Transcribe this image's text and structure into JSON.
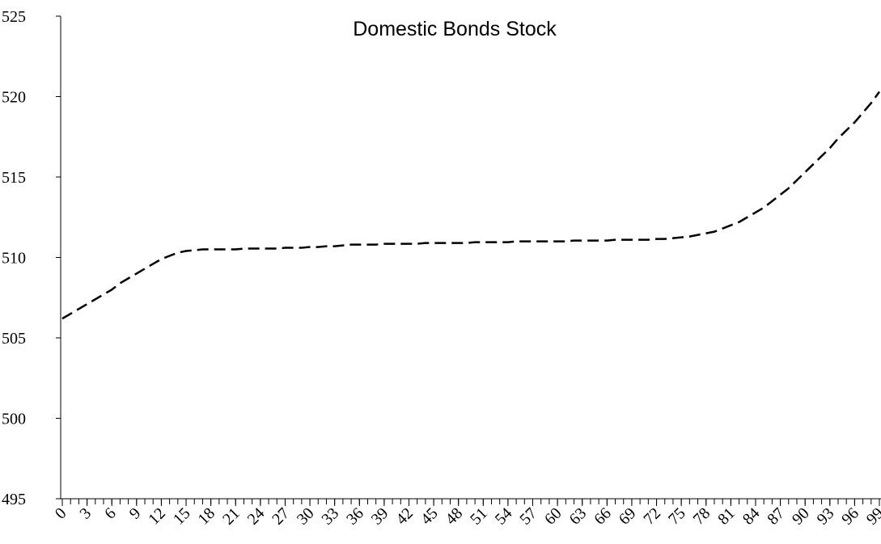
{
  "chart_data": {
    "type": "line",
    "title": "Domestic Bonds Stock",
    "x": [
      0,
      1,
      2,
      3,
      4,
      5,
      6,
      7,
      8,
      9,
      10,
      11,
      12,
      13,
      14,
      15,
      16,
      17,
      18,
      19,
      20,
      21,
      22,
      23,
      24,
      25,
      26,
      27,
      28,
      29,
      30,
      31,
      32,
      33,
      34,
      35,
      36,
      37,
      38,
      39,
      40,
      41,
      42,
      43,
      44,
      45,
      46,
      47,
      48,
      49,
      50,
      51,
      52,
      53,
      54,
      55,
      56,
      57,
      58,
      59,
      60,
      61,
      62,
      63,
      64,
      65,
      66,
      67,
      68,
      69,
      70,
      71,
      72,
      73,
      74,
      75,
      76,
      77,
      78,
      79,
      80,
      81,
      82,
      83,
      84,
      85,
      86,
      87,
      88,
      89,
      90,
      91,
      92,
      93,
      94,
      95,
      96,
      97,
      98,
      99
    ],
    "series": [
      {
        "color": "#000000",
        "values": [
          506.2,
          506.5,
          506.8,
          507.1,
          507.4,
          507.7,
          508.0,
          508.4,
          508.7,
          509.0,
          509.3,
          509.6,
          509.9,
          510.1,
          510.3,
          510.4,
          510.45,
          510.5,
          510.5,
          510.5,
          510.5,
          510.5,
          510.55,
          510.55,
          510.55,
          510.55,
          510.55,
          510.6,
          510.6,
          510.6,
          510.65,
          510.65,
          510.7,
          510.7,
          510.75,
          510.8,
          510.8,
          510.8,
          510.8,
          510.85,
          510.85,
          510.85,
          510.85,
          510.85,
          510.9,
          510.9,
          510.9,
          510.9,
          510.9,
          510.9,
          510.95,
          510.95,
          510.95,
          510.95,
          510.95,
          511.0,
          511.0,
          511.0,
          511.0,
          511.0,
          511.0,
          511.0,
          511.05,
          511.05,
          511.05,
          511.05,
          511.05,
          511.1,
          511.1,
          511.1,
          511.1,
          511.1,
          511.15,
          511.15,
          511.2,
          511.25,
          511.3,
          511.4,
          511.5,
          511.6,
          511.8,
          512.0,
          512.2,
          512.5,
          512.8,
          513.1,
          513.5,
          513.9,
          514.3,
          514.8,
          515.3,
          515.8,
          516.3,
          516.8,
          517.4,
          517.9,
          518.4,
          519.0,
          519.6,
          520.3
        ]
      }
    ],
    "xlim": [
      0,
      99
    ],
    "xticks": [
      0,
      3,
      6,
      9,
      12,
      15,
      18,
      21,
      24,
      27,
      30,
      33,
      36,
      39,
      42,
      45,
      48,
      51,
      54,
      57,
      60,
      63,
      66,
      69,
      72,
      75,
      78,
      81,
      84,
      87,
      90,
      93,
      96,
      99
    ],
    "xminorticks": [
      0,
      1,
      2,
      3,
      4,
      5,
      6,
      7,
      8,
      9,
      10,
      11,
      12,
      13,
      14,
      15,
      16,
      17,
      18,
      19,
      20,
      21,
      22,
      23,
      24,
      25,
      26,
      27,
      28,
      29,
      30,
      31,
      32,
      33,
      34,
      35,
      36,
      37,
      38,
      39,
      40,
      41,
      42,
      43,
      44,
      45,
      46,
      47,
      48,
      49,
      50,
      51,
      52,
      53,
      54,
      55,
      56,
      57,
      58,
      59,
      60,
      61,
      62,
      63,
      64,
      65,
      66,
      67,
      68,
      69,
      70,
      71,
      72,
      73,
      74,
      75,
      76,
      77,
      78,
      79,
      80,
      81,
      82,
      83,
      84,
      85,
      86,
      87,
      88,
      89,
      90,
      91,
      92,
      93,
      94,
      95,
      96,
      97,
      98,
      99
    ],
    "ylim": [
      495,
      525
    ],
    "yticks": [
      495,
      500,
      505,
      510,
      515,
      520,
      525
    ],
    "line_style": "dashed",
    "grid": false
  }
}
